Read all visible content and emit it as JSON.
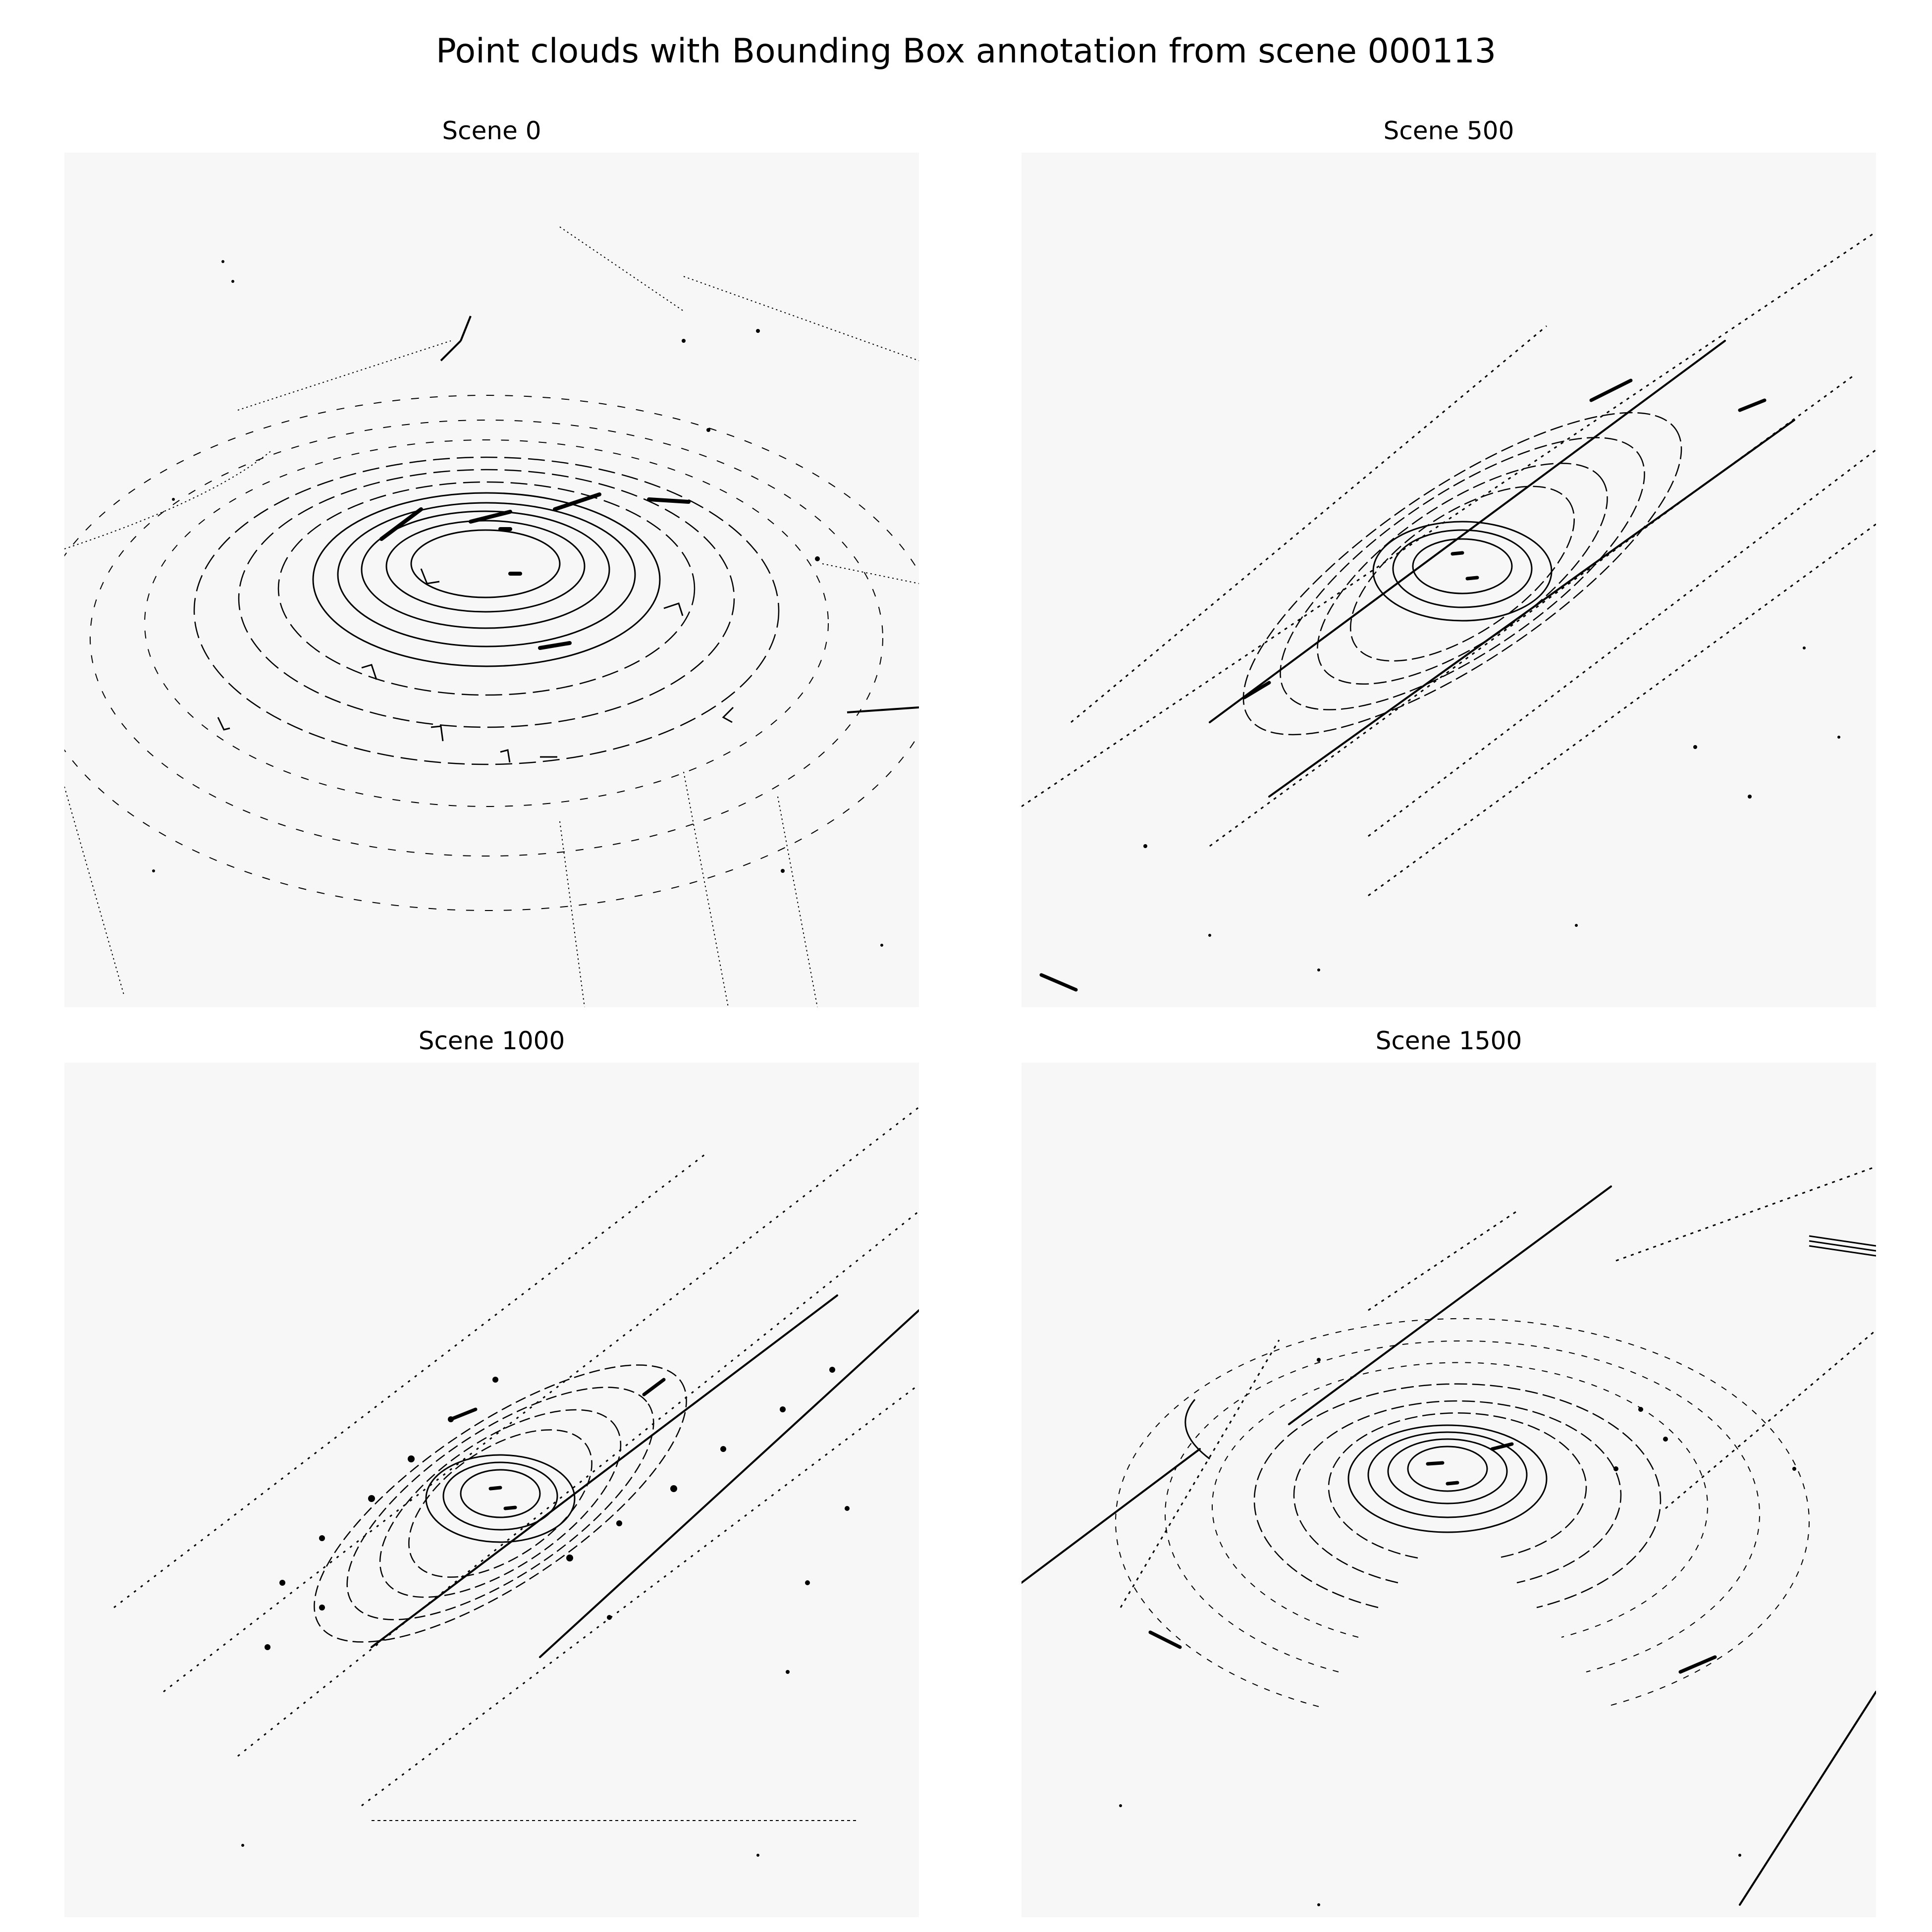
{
  "figure": {
    "title": "Point clouds with Bounding Box annotation from scene 000113"
  },
  "panels": [
    {
      "title": "Scene 0"
    },
    {
      "title": "Scene 500"
    },
    {
      "title": "Scene 1000"
    },
    {
      "title": "Scene 1500"
    }
  ],
  "colors": {
    "background": "#ffffff",
    "panel_background": "#f7f7f7",
    "points": "#000000"
  }
}
